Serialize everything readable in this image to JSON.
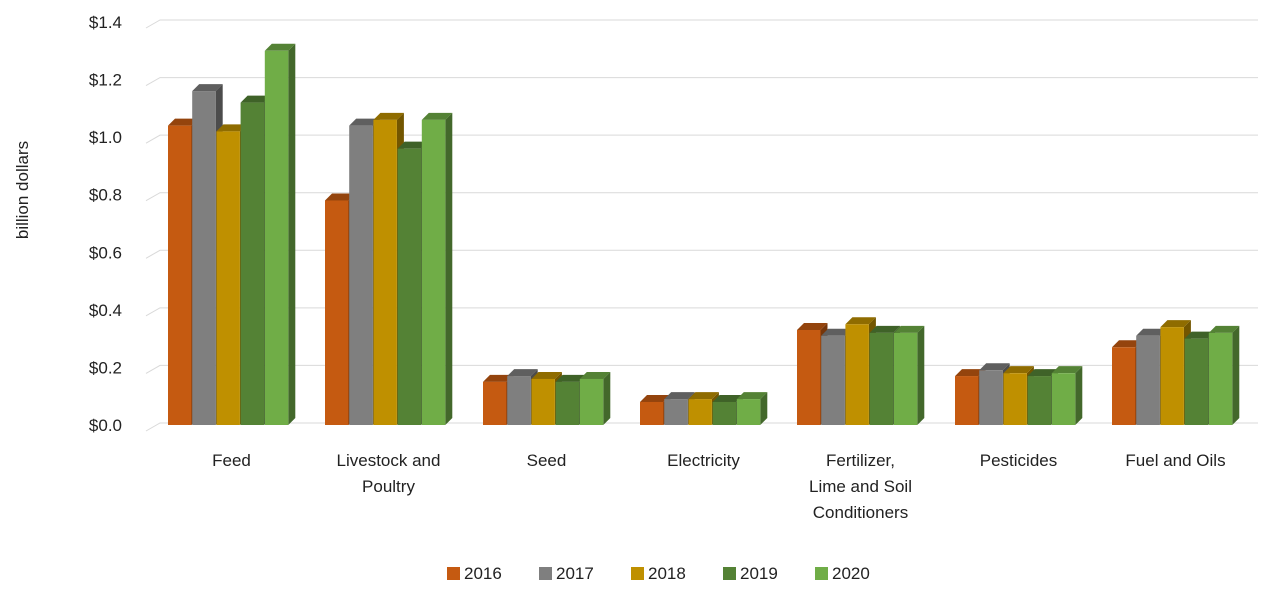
{
  "chart_data": {
    "type": "bar",
    "title": "",
    "xlabel": "",
    "ylabel": "billion dollars",
    "ylim": [
      0,
      1.4
    ],
    "yticks": [
      "$0.0",
      "$0.2",
      "$0.4",
      "$0.6",
      "$0.8",
      "$1.0",
      "$1.2",
      "$1.4"
    ],
    "ytick_values": [
      0,
      0.2,
      0.4,
      0.6,
      0.8,
      1.0,
      1.2,
      1.4
    ],
    "grid": true,
    "legend_position": "bottom",
    "categories": [
      [
        "Feed"
      ],
      [
        "Livestock and",
        "Poultry"
      ],
      [
        "Seed"
      ],
      [
        "Electricity"
      ],
      [
        "Fertilizer,",
        "Lime and Soil",
        "Conditioners"
      ],
      [
        "Pesticides"
      ],
      [
        "Fuel and Oils"
      ]
    ],
    "series": [
      {
        "name": "2016",
        "color": "#c55a11",
        "values": [
          1.04,
          0.78,
          0.15,
          0.08,
          0.33,
          0.17,
          0.27
        ]
      },
      {
        "name": "2017",
        "color": "#7f7f7f",
        "values": [
          1.16,
          1.04,
          0.17,
          0.09,
          0.31,
          0.19,
          0.31
        ]
      },
      {
        "name": "2018",
        "color": "#bf9000",
        "values": [
          1.02,
          1.06,
          0.16,
          0.09,
          0.35,
          0.18,
          0.34
        ]
      },
      {
        "name": "2019",
        "color": "#548235",
        "values": [
          1.12,
          0.96,
          0.15,
          0.08,
          0.32,
          0.17,
          0.3
        ]
      },
      {
        "name": "2020",
        "color": "#70ad47",
        "values": [
          1.3,
          1.06,
          0.16,
          0.09,
          0.32,
          0.18,
          0.32
        ]
      }
    ]
  }
}
